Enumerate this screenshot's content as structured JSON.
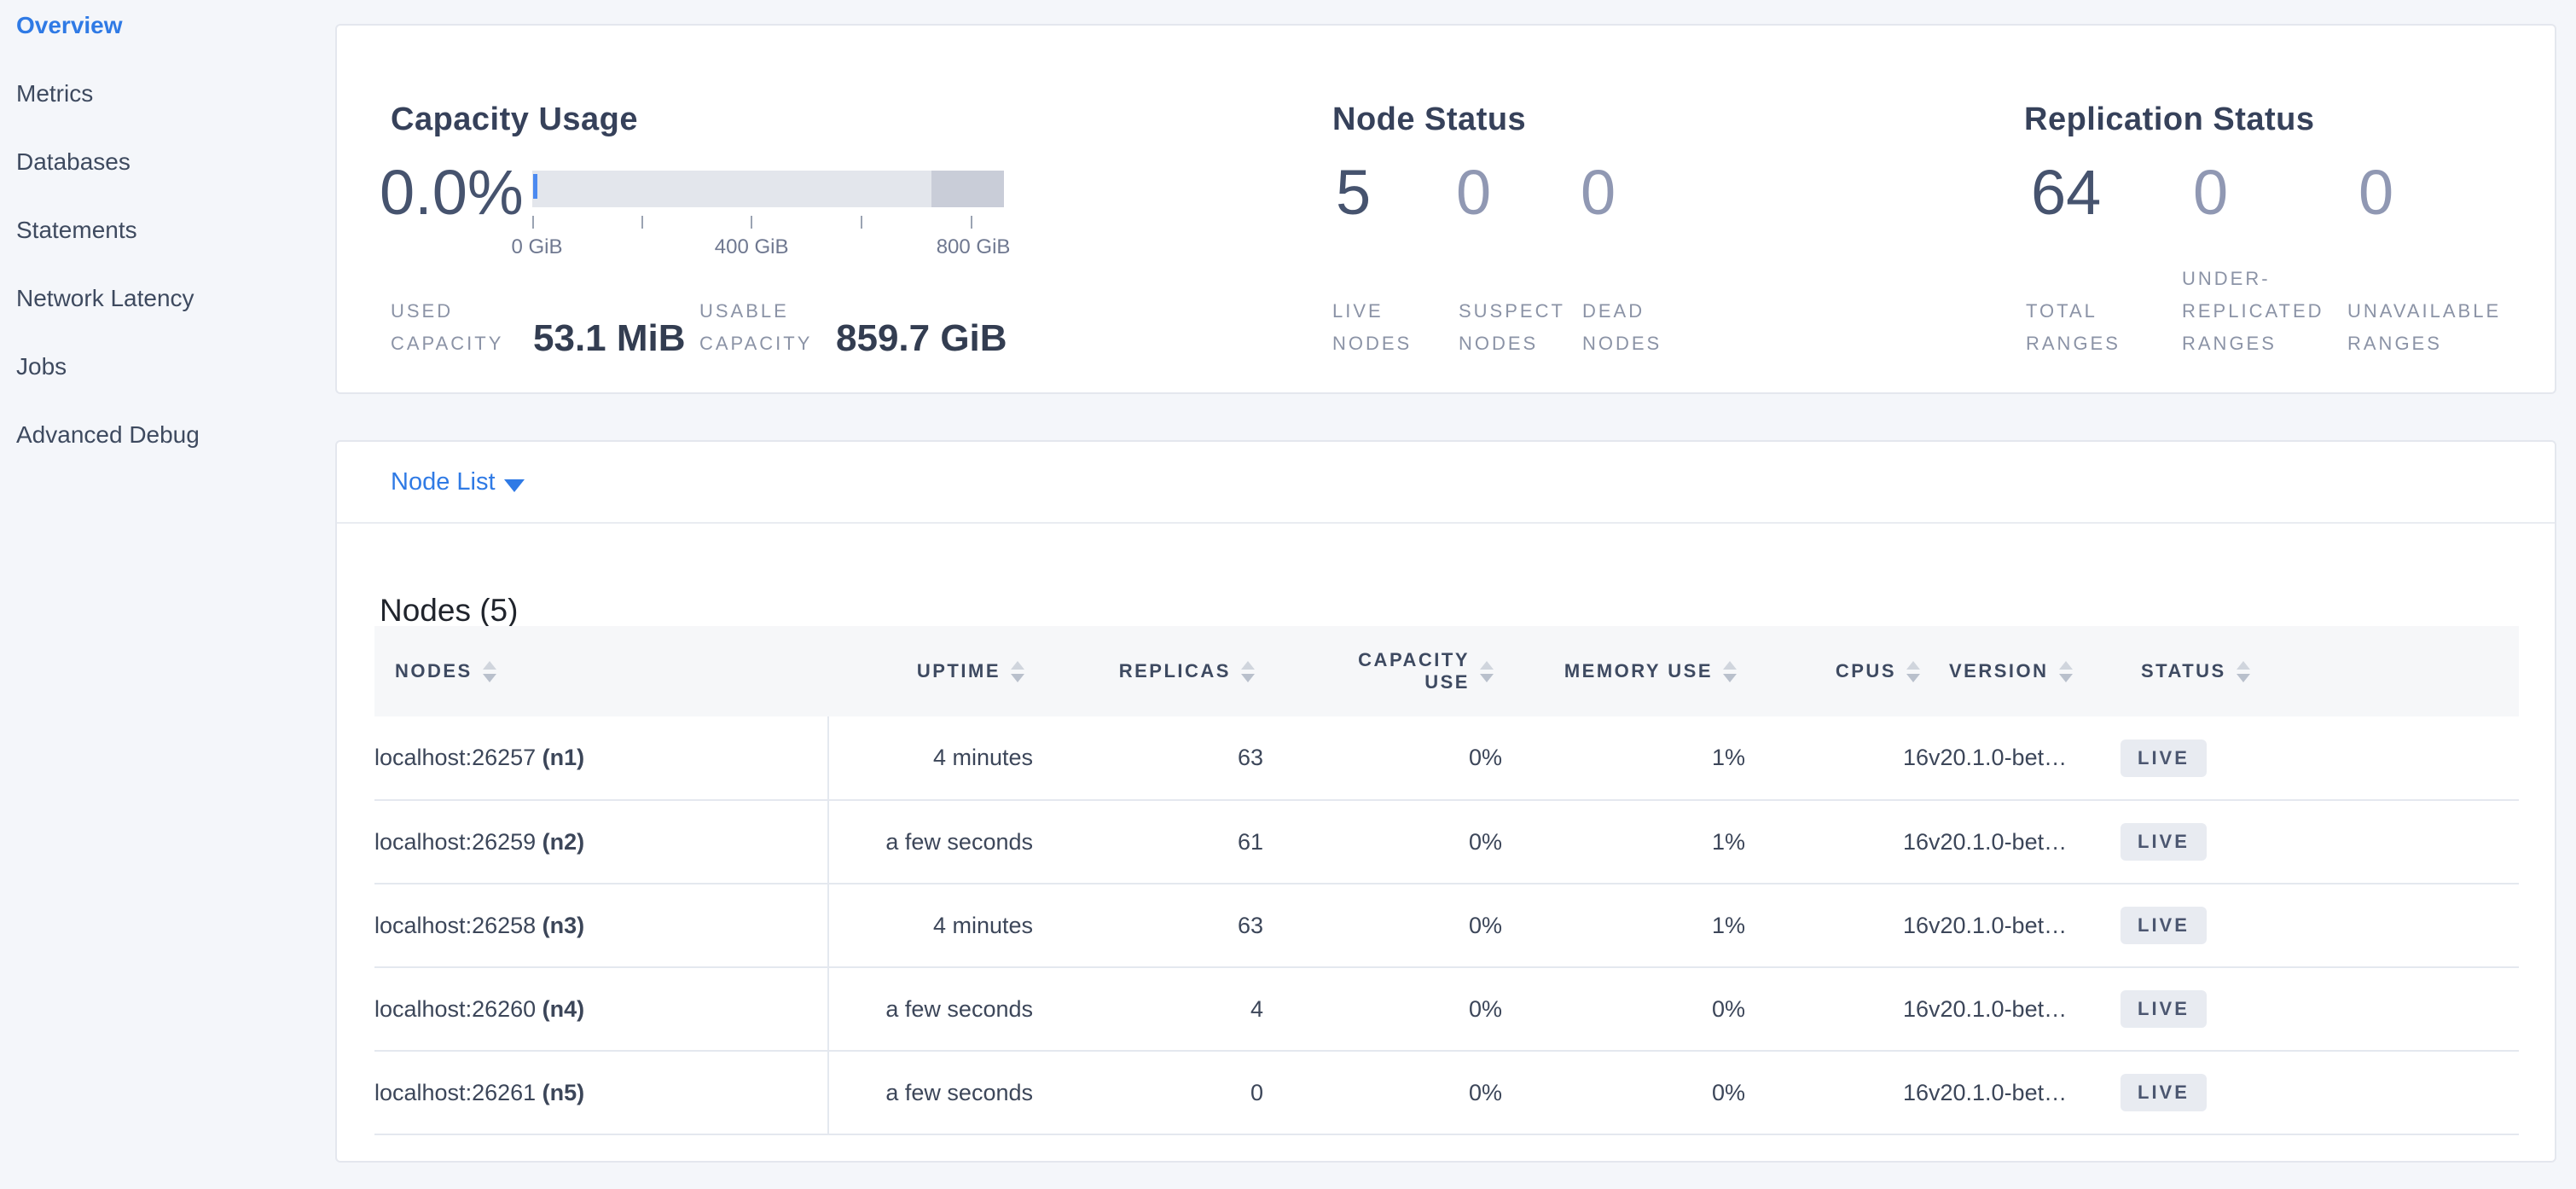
{
  "sidebar": {
    "items": [
      {
        "label": "Overview",
        "active": true
      },
      {
        "label": "Metrics",
        "active": false
      },
      {
        "label": "Databases",
        "active": false
      },
      {
        "label": "Statements",
        "active": false
      },
      {
        "label": "Network Latency",
        "active": false
      },
      {
        "label": "Jobs",
        "active": false
      },
      {
        "label": "Advanced Debug",
        "active": false
      }
    ]
  },
  "summary": {
    "capacity": {
      "title": "Capacity Usage",
      "percent": "0.0%",
      "gauge": {
        "tick_labels": [
          "0 GiB",
          "400 GiB",
          "800 GiB"
        ]
      },
      "used_label": "USED CAPACITY",
      "used_value": "53.1 MiB",
      "usable_label": "USABLE CAPACITY",
      "usable_value": "859.7 GiB"
    },
    "node_status": {
      "title": "Node Status",
      "stats": [
        {
          "value": "5",
          "label": "LIVE NODES"
        },
        {
          "value": "0",
          "label": "SUSPECT NODES"
        },
        {
          "value": "0",
          "label": "DEAD NODES"
        }
      ]
    },
    "replication": {
      "title": "Replication Status",
      "stats": [
        {
          "value": "64",
          "label": "TOTAL RANGES"
        },
        {
          "value": "0",
          "label": "UNDER-REPLICATED RANGES"
        },
        {
          "value": "0",
          "label": "UNAVAILABLE RANGES"
        }
      ]
    }
  },
  "nodes_section": {
    "dropdown_label": "Node List",
    "heading": "Nodes (5)",
    "table": {
      "columns": [
        {
          "label": "NODES"
        },
        {
          "label": "UPTIME"
        },
        {
          "label": "REPLICAS"
        },
        {
          "label": "CAPACITY USE"
        },
        {
          "label": "MEMORY USE"
        },
        {
          "label": "CPUS"
        },
        {
          "label": "VERSION"
        },
        {
          "label": "STATUS"
        }
      ],
      "rows": [
        {
          "address": "localhost:26257",
          "node_id": "(n1)",
          "uptime": "4 minutes",
          "replicas": "63",
          "capacity_use": "0%",
          "memory_use": "1%",
          "cpus": "16",
          "version": "v20.1.0-bet…",
          "status": "LIVE"
        },
        {
          "address": "localhost:26259",
          "node_id": "(n2)",
          "uptime": "a few seconds",
          "replicas": "61",
          "capacity_use": "0%",
          "memory_use": "1%",
          "cpus": "16",
          "version": "v20.1.0-bet…",
          "status": "LIVE"
        },
        {
          "address": "localhost:26258",
          "node_id": "(n3)",
          "uptime": "4 minutes",
          "replicas": "63",
          "capacity_use": "0%",
          "memory_use": "1%",
          "cpus": "16",
          "version": "v20.1.0-bet…",
          "status": "LIVE"
        },
        {
          "address": "localhost:26260",
          "node_id": "(n4)",
          "uptime": "a few seconds",
          "replicas": "4",
          "capacity_use": "0%",
          "memory_use": "0%",
          "cpus": "16",
          "version": "v20.1.0-bet…",
          "status": "LIVE"
        },
        {
          "address": "localhost:26261",
          "node_id": "(n5)",
          "uptime": "a few seconds",
          "replicas": "0",
          "capacity_use": "0%",
          "memory_use": "0%",
          "cpus": "16",
          "version": "v20.1.0-bet…",
          "status": "LIVE"
        }
      ]
    }
  },
  "colors": {
    "accent_blue": "#2f7ae5",
    "page_bg": "#f4f6fa",
    "bar_light": "#e3e6ec",
    "bar_dark": "#c9cdd8",
    "used_bar_blue": "#4c8af0",
    "badge_bg": "#e8ebf1",
    "header_bg": "#f6f7f9",
    "muted_label": "#8b93a6",
    "muted_number": "#9098b3",
    "dark_text": "#3c4659"
  }
}
